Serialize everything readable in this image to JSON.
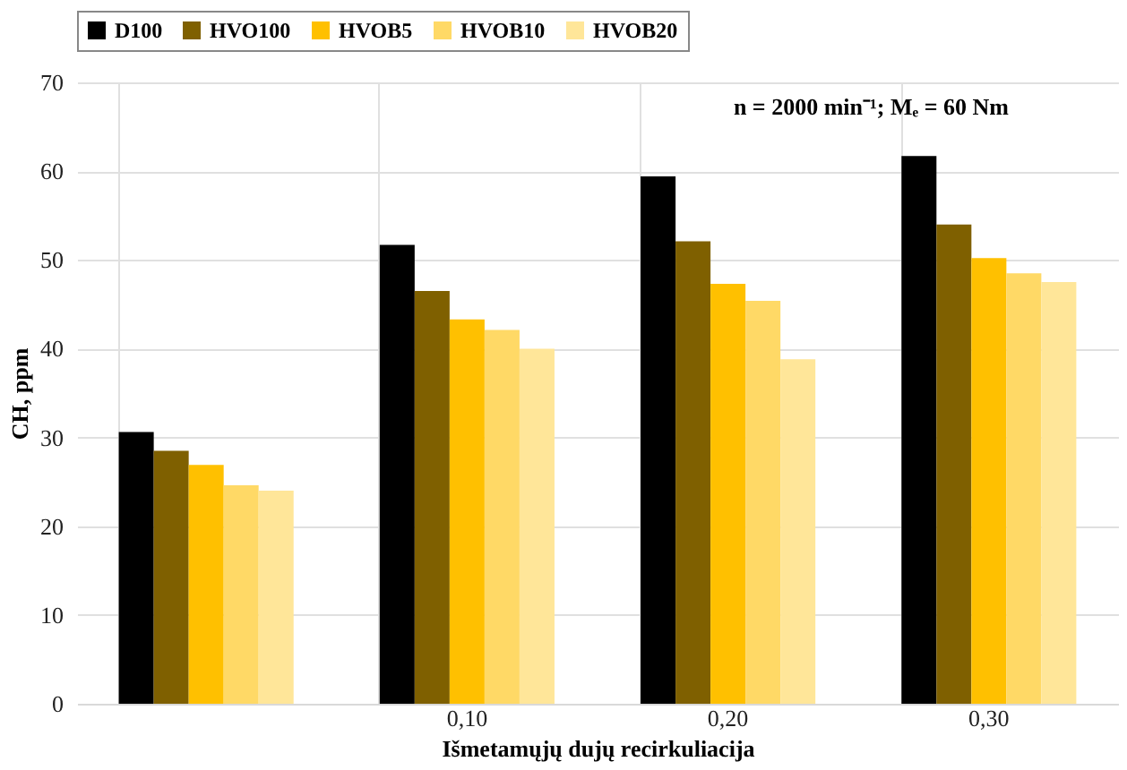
{
  "chart_data": {
    "type": "bar",
    "xlabel": "Išmetamųjų dujų recirkuliacija",
    "ylabel": "CH, ppm",
    "categories": [
      null,
      "0,10",
      "0,20",
      "0,30"
    ],
    "series": [
      {
        "name": "D100",
        "color": "#000000",
        "values": [
          30.6,
          51.7,
          59.4,
          61.7
        ]
      },
      {
        "name": "HVO100",
        "color": "#7f6000",
        "values": [
          28.5,
          46.5,
          52.1,
          54.0
        ]
      },
      {
        "name": "HVOB5",
        "color": "#ffc000",
        "values": [
          26.9,
          43.3,
          47.3,
          50.2
        ]
      },
      {
        "name": "HVOB10",
        "color": "#ffd966",
        "values": [
          24.6,
          42.1,
          45.4,
          48.5
        ]
      },
      {
        "name": "HVOB20",
        "color": "#ffe699",
        "values": [
          24.0,
          40.0,
          38.8,
          47.5
        ]
      }
    ],
    "ylim": [
      0,
      70
    ],
    "yticks": [
      0,
      10,
      20,
      30,
      40,
      50,
      60,
      70
    ],
    "grid": true,
    "legend": "top",
    "annotations": [
      "n = 2000 min⁻¹; Mₑ = 60 Nm"
    ]
  }
}
